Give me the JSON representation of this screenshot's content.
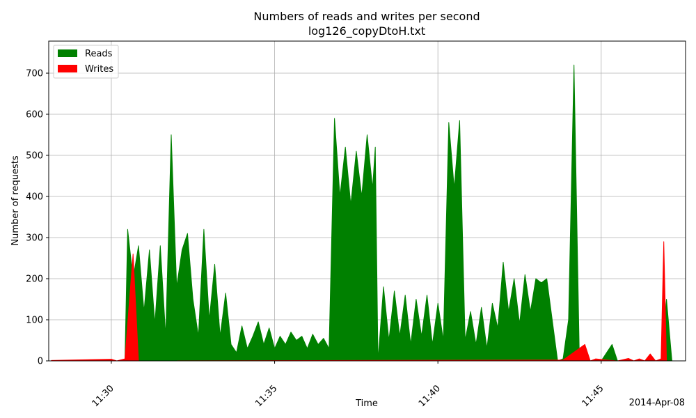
{
  "chart_data": {
    "type": "area",
    "title": "Numbers of reads and writes per second",
    "subtitle": "log126_copyDtoH.txt",
    "xlabel": "Time",
    "ylabel": "Number of requests",
    "date_label": "2014-Apr-08",
    "xlim": [
      "11:28:05",
      "11:47:35"
    ],
    "ylim": [
      0,
      778
    ],
    "x_ticks": [
      "11:30",
      "11:35",
      "11:40",
      "11:45"
    ],
    "y_ticks": [
      0,
      100,
      200,
      300,
      400,
      500,
      600,
      700
    ],
    "grid": true,
    "legend_position": "top-left",
    "series": [
      {
        "name": "Reads",
        "color": "#008000",
        "points": [
          [
            "11:28:10",
            0
          ],
          [
            "11:30:00",
            0
          ],
          [
            "11:30:25",
            0
          ],
          [
            "11:30:30",
            320
          ],
          [
            "11:30:40",
            200
          ],
          [
            "11:30:50",
            280
          ],
          [
            "11:31:00",
            120
          ],
          [
            "11:31:10",
            270
          ],
          [
            "11:31:20",
            90
          ],
          [
            "11:31:30",
            280
          ],
          [
            "11:31:40",
            60
          ],
          [
            "11:31:50",
            550
          ],
          [
            "11:32:00",
            180
          ],
          [
            "11:32:10",
            270
          ],
          [
            "11:32:20",
            310
          ],
          [
            "11:32:30",
            150
          ],
          [
            "11:32:40",
            60
          ],
          [
            "11:32:50",
            320
          ],
          [
            "11:33:00",
            100
          ],
          [
            "11:33:10",
            235
          ],
          [
            "11:33:20",
            60
          ],
          [
            "11:33:30",
            165
          ],
          [
            "11:33:40",
            40
          ],
          [
            "11:33:50",
            20
          ],
          [
            "11:34:00",
            85
          ],
          [
            "11:34:10",
            30
          ],
          [
            "11:34:20",
            60
          ],
          [
            "11:34:30",
            95
          ],
          [
            "11:34:40",
            40
          ],
          [
            "11:34:50",
            80
          ],
          [
            "11:35:00",
            30
          ],
          [
            "11:35:10",
            60
          ],
          [
            "11:35:20",
            40
          ],
          [
            "11:35:30",
            70
          ],
          [
            "11:35:40",
            50
          ],
          [
            "11:35:50",
            60
          ],
          [
            "11:36:00",
            30
          ],
          [
            "11:36:10",
            65
          ],
          [
            "11:36:20",
            40
          ],
          [
            "11:36:30",
            55
          ],
          [
            "11:36:40",
            30
          ],
          [
            "11:36:50",
            590
          ],
          [
            "11:37:00",
            400
          ],
          [
            "11:37:10",
            520
          ],
          [
            "11:37:20",
            380
          ],
          [
            "11:37:30",
            510
          ],
          [
            "11:37:40",
            400
          ],
          [
            "11:37:50",
            550
          ],
          [
            "11:38:00",
            420
          ],
          [
            "11:38:05",
            520
          ],
          [
            "11:38:10",
            0
          ],
          [
            "11:38:20",
            180
          ],
          [
            "11:38:30",
            50
          ],
          [
            "11:38:40",
            170
          ],
          [
            "11:38:50",
            60
          ],
          [
            "11:39:00",
            160
          ],
          [
            "11:39:10",
            40
          ],
          [
            "11:39:20",
            150
          ],
          [
            "11:39:30",
            60
          ],
          [
            "11:39:40",
            160
          ],
          [
            "11:39:50",
            40
          ],
          [
            "11:40:00",
            140
          ],
          [
            "11:40:10",
            50
          ],
          [
            "11:40:20",
            580
          ],
          [
            "11:40:30",
            420
          ],
          [
            "11:40:40",
            585
          ],
          [
            "11:40:50",
            50
          ],
          [
            "11:41:00",
            120
          ],
          [
            "11:41:10",
            40
          ],
          [
            "11:41:20",
            130
          ],
          [
            "11:41:30",
            30
          ],
          [
            "11:41:40",
            140
          ],
          [
            "11:41:50",
            80
          ],
          [
            "11:42:00",
            240
          ],
          [
            "11:42:10",
            120
          ],
          [
            "11:42:20",
            200
          ],
          [
            "11:42:30",
            90
          ],
          [
            "11:42:40",
            210
          ],
          [
            "11:42:50",
            120
          ],
          [
            "11:43:00",
            200
          ],
          [
            "11:43:10",
            190
          ],
          [
            "11:43:20",
            200
          ],
          [
            "11:43:30",
            100
          ],
          [
            "11:43:40",
            0
          ],
          [
            "11:43:50",
            5
          ],
          [
            "11:44:00",
            100
          ],
          [
            "11:44:10",
            720
          ],
          [
            "11:44:20",
            0
          ],
          [
            "11:44:30",
            25
          ],
          [
            "11:44:40",
            0
          ],
          [
            "11:45:00",
            0
          ],
          [
            "11:45:20",
            40
          ],
          [
            "11:45:30",
            0
          ],
          [
            "11:46:50",
            0
          ],
          [
            "11:47:00",
            150
          ],
          [
            "11:47:10",
            0
          ]
        ]
      },
      {
        "name": "Writes",
        "color": "#ff0000",
        "points": [
          [
            "11:28:10",
            1
          ],
          [
            "11:30:00",
            4
          ],
          [
            "11:30:10",
            0
          ],
          [
            "11:30:25",
            5
          ],
          [
            "11:30:40",
            260
          ],
          [
            "11:30:50",
            0
          ],
          [
            "11:43:50",
            2
          ],
          [
            "11:44:30",
            40
          ],
          [
            "11:44:40",
            0
          ],
          [
            "11:44:50",
            5
          ],
          [
            "11:45:10",
            2
          ],
          [
            "11:45:30",
            0
          ],
          [
            "11:45:50",
            6
          ],
          [
            "11:46:00",
            0
          ],
          [
            "11:46:10",
            5
          ],
          [
            "11:46:20",
            0
          ],
          [
            "11:46:30",
            17
          ],
          [
            "11:46:40",
            0
          ],
          [
            "11:46:50",
            5
          ],
          [
            "11:46:55",
            290
          ],
          [
            "11:47:00",
            0
          ]
        ]
      }
    ]
  }
}
